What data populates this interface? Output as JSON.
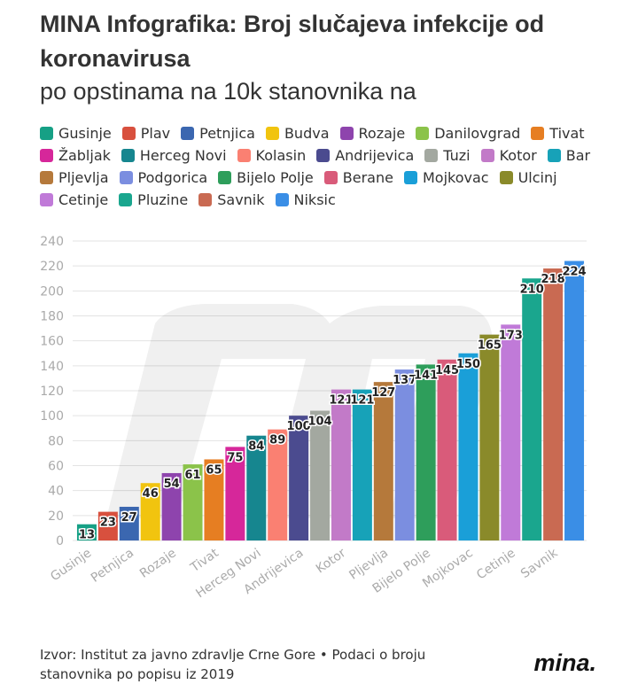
{
  "header": {
    "title": "MINA Infografika: Broj slučajeva infekcije od koronavirusa",
    "subtitle": "po opstinama na 10k stanovnika na"
  },
  "footer": {
    "source": "Izvor: Institut za javno zdravlje Crne Gore • Podaci o broju stanovnika po popisu iz 2019",
    "logo": "mina."
  },
  "chart_data": {
    "type": "bar",
    "title": "MINA Infografika: Broj slučajeva infekcije od koronavirusa",
    "subtitle": "po opstinama na 10k stanovnika na",
    "ylim": [
      0,
      240
    ],
    "yticks": [
      0,
      20,
      40,
      60,
      80,
      100,
      120,
      140,
      160,
      180,
      200,
      220,
      240
    ],
    "grid": true,
    "legend_position": "top",
    "categories": [
      "Gusinje",
      "Plav",
      "Petnjica",
      "Budva",
      "Rozaje",
      "Danilovgrad",
      "Tivat",
      "Žabljak",
      "Herceg Novi",
      "Kolasin",
      "Andrijevica",
      "Tuzi",
      "Kotor",
      "Bar",
      "Pljevlja",
      "Podgorica",
      "Bijelo Polje",
      "Berane",
      "Mojkovac",
      "Ulcinj",
      "Cetinje",
      "Pluzine",
      "Savnik",
      "Niksic"
    ],
    "values": [
      13,
      23,
      27,
      46,
      54,
      61,
      65,
      75,
      84,
      89,
      100,
      104,
      121,
      121,
      127,
      137,
      141,
      145,
      150,
      165,
      173,
      210,
      218,
      224
    ],
    "value_labels": [
      "13",
      "23",
      "27",
      "46",
      "54",
      "61",
      "65",
      "75",
      "84",
      "89",
      "100",
      "104",
      "121",
      "121",
      "127",
      "137",
      "141",
      "145",
      "150",
      "165",
      "173",
      "210",
      "218",
      "224"
    ],
    "xtick_labels": [
      "Gusinje",
      "Petnjica",
      "Rozaje",
      "Tivat",
      "Herceg Novi",
      "Andrijevica",
      "Kotor",
      "Pljevlja",
      "Bijelo Polje",
      "Mojkovac",
      "Cetinje",
      "Savnik"
    ],
    "colors": [
      "#16a085",
      "#d8503e",
      "#3b67b0",
      "#f1c40f",
      "#8e44ad",
      "#8bc34a",
      "#e67e22",
      "#d6279a",
      "#16868f",
      "#fa8072",
      "#4b4b8f",
      "#a3a8a0",
      "#c27ac8",
      "#17a2b8",
      "#b5793b",
      "#7b8ee0",
      "#2e9e5b",
      "#d95b7a",
      "#1a9fd8",
      "#8a8a2a",
      "#c07ad8",
      "#1aa68e",
      "#c96a52",
      "#3a8ee6"
    ]
  }
}
